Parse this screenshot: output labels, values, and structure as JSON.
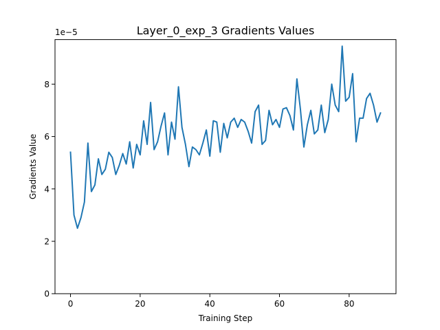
{
  "chart_data": {
    "type": "line",
    "title": "Layer_0_exp_3 Gradients Values",
    "xlabel": "Training Step",
    "ylabel": "Gradients Value",
    "y_offset_label": "1e−5",
    "y_scale": 1e-05,
    "xlim": [
      -4.45,
      93.45
    ],
    "ylim": [
      0,
      9.7
    ],
    "x_ticks": [
      0,
      20,
      40,
      60,
      80
    ],
    "x_tick_labels": [
      "0",
      "20",
      "40",
      "60",
      "80"
    ],
    "y_ticks": [
      0,
      2,
      4,
      6,
      8
    ],
    "y_tick_labels": [
      "0",
      "2",
      "4",
      "6",
      "8"
    ],
    "grid": false,
    "series": [
      {
        "color": "#1f77b4",
        "x": [
          0,
          1,
          2,
          3,
          4,
          5,
          6,
          7,
          8,
          9,
          10,
          11,
          12,
          13,
          14,
          15,
          16,
          17,
          18,
          19,
          20,
          21,
          22,
          23,
          24,
          25,
          26,
          27,
          28,
          29,
          30,
          31,
          32,
          33,
          34,
          35,
          36,
          37,
          38,
          39,
          40,
          41,
          42,
          43,
          44,
          45,
          46,
          47,
          48,
          49,
          50,
          51,
          52,
          53,
          54,
          55,
          56,
          57,
          58,
          59,
          60,
          61,
          62,
          63,
          64,
          65,
          66,
          67,
          68,
          69,
          70,
          71,
          72,
          73,
          74,
          75,
          76,
          77,
          78,
          79,
          80,
          81,
          82,
          83,
          84,
          85,
          86,
          87,
          88,
          89
        ],
        "y": [
          5.4,
          3.0,
          2.5,
          2.9,
          3.5,
          5.75,
          3.9,
          4.15,
          5.15,
          4.55,
          4.75,
          5.4,
          5.2,
          4.55,
          4.9,
          5.35,
          4.95,
          5.8,
          4.8,
          5.7,
          5.3,
          6.6,
          5.7,
          7.3,
          5.5,
          5.8,
          6.4,
          6.9,
          5.3,
          6.55,
          5.9,
          7.9,
          6.35,
          5.7,
          4.85,
          5.6,
          5.5,
          5.3,
          5.75,
          6.25,
          5.25,
          6.6,
          6.55,
          5.4,
          6.5,
          5.95,
          6.55,
          6.7,
          6.35,
          6.65,
          6.55,
          6.2,
          5.75,
          6.95,
          7.2,
          5.7,
          5.85,
          7.0,
          6.45,
          6.65,
          6.35,
          7.05,
          7.1,
          6.8,
          6.25,
          8.2,
          7.05,
          5.6,
          6.45,
          7.0,
          6.1,
          6.25,
          7.2,
          6.15,
          6.65,
          8.0,
          7.2,
          6.95,
          9.45,
          7.35,
          7.5,
          8.4,
          5.8,
          6.7,
          6.7,
          7.45,
          7.65,
          7.2,
          6.55,
          6.9
        ]
      }
    ]
  }
}
